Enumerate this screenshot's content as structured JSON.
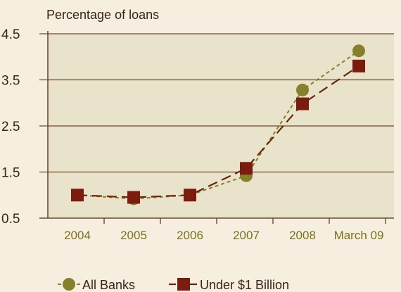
{
  "chart_data": {
    "type": "line",
    "ylabel": "Percentage of loans",
    "categories": [
      "2004",
      "2005",
      "2006",
      "2007",
      "2008",
      "March 09"
    ],
    "y_ticks": [
      "4.5",
      "3.5",
      "2.5",
      "1.5",
      "0.5"
    ],
    "ylim": [
      0.5,
      4.5
    ],
    "grid": true,
    "legend_position": "bottom",
    "series": [
      {
        "name": "All Banks",
        "marker": "circle",
        "color": "#86802a",
        "line_color": "#86802a",
        "values": [
          1.0,
          0.92,
          1.0,
          1.42,
          3.28,
          4.13
        ]
      },
      {
        "name": "Under $1 Billion",
        "marker": "square",
        "color": "#7a1c0e",
        "line_color": "#6b2410",
        "values": [
          1.0,
          0.95,
          1.0,
          1.58,
          2.98,
          3.8
        ]
      }
    ],
    "colors": {
      "background": "#f6efdf",
      "plot_area": "#e9e3cb",
      "axis": "#6b4a2e",
      "grid": "#6b4a2e"
    }
  }
}
